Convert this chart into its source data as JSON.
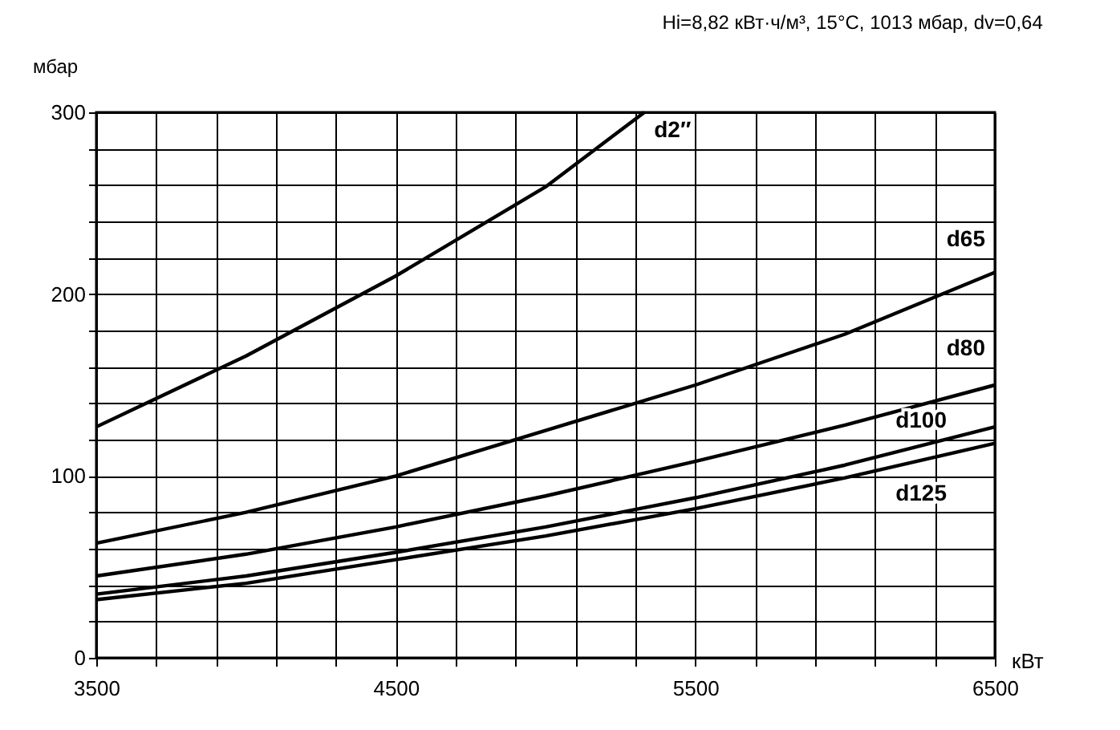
{
  "chart_data": {
    "type": "line",
    "subtitle": "Hi=8,82 кВт·ч/м³, 15°C, 1013 мбар, dv=0,64",
    "xlabel": "кВт",
    "ylabel": "мбар",
    "xlim": [
      3500,
      6500
    ],
    "ylim": [
      0,
      300
    ],
    "xticks": [
      3500,
      {
        "value": 3700,
        "label": null
      },
      {
        "value": 3900,
        "label": null
      },
      {
        "value": 4100,
        "label": null
      },
      {
        "value": 4300,
        "label": null
      },
      4500,
      {
        "value": 4700,
        "label": null
      },
      {
        "value": 4900,
        "label": null
      },
      {
        "value": 5100,
        "label": null
      },
      {
        "value": 5300,
        "label": null
      },
      5500,
      {
        "value": 5700,
        "label": null
      },
      {
        "value": 5900,
        "label": null
      },
      {
        "value": 6100,
        "label": null
      },
      {
        "value": 6300,
        "label": null
      },
      6500
    ],
    "yticks": [
      0,
      {
        "value": 20,
        "label": null
      },
      {
        "value": 40,
        "label": null
      },
      {
        "value": 60,
        "label": null
      },
      {
        "value": 80,
        "label": null
      },
      100,
      {
        "value": 120,
        "label": null
      },
      {
        "value": 140,
        "label": null
      },
      {
        "value": 160,
        "label": null
      },
      {
        "value": 180,
        "label": null
      },
      200,
      {
        "value": 220,
        "label": null
      },
      {
        "value": 240,
        "label": null
      },
      {
        "value": 260,
        "label": null
      },
      {
        "value": 280,
        "label": null
      },
      300
    ],
    "grid": true,
    "legend": false,
    "marker": "none",
    "line_style": "solid",
    "series": [
      {
        "name": "d2″",
        "color": "#000000",
        "x": [
          3500,
          4000,
          4500,
          5000,
          5330
        ],
        "values": [
          127,
          166,
          210,
          259,
          300
        ]
      },
      {
        "name": "d65",
        "color": "#000000",
        "x": [
          3500,
          4000,
          4500,
          5000,
          5500,
          6000,
          6500
        ],
        "values": [
          63,
          80,
          100,
          125,
          150,
          178,
          212
        ]
      },
      {
        "name": "d80",
        "color": "#000000",
        "x": [
          3500,
          4000,
          4500,
          5000,
          5500,
          6000,
          6500
        ],
        "values": [
          45,
          57,
          72,
          89,
          108,
          128,
          150
        ]
      },
      {
        "name": "d100",
        "color": "#000000",
        "x": [
          3500,
          4000,
          4500,
          5000,
          5500,
          6000,
          6500
        ],
        "values": [
          35,
          45,
          58,
          72,
          88,
          106,
          127
        ]
      },
      {
        "name": "d125",
        "color": "#000000",
        "x": [
          3500,
          4000,
          4500,
          5000,
          5500,
          6000,
          6500
        ],
        "values": [
          32,
          41,
          54,
          67,
          82,
          99,
          118
        ]
      }
    ]
  }
}
